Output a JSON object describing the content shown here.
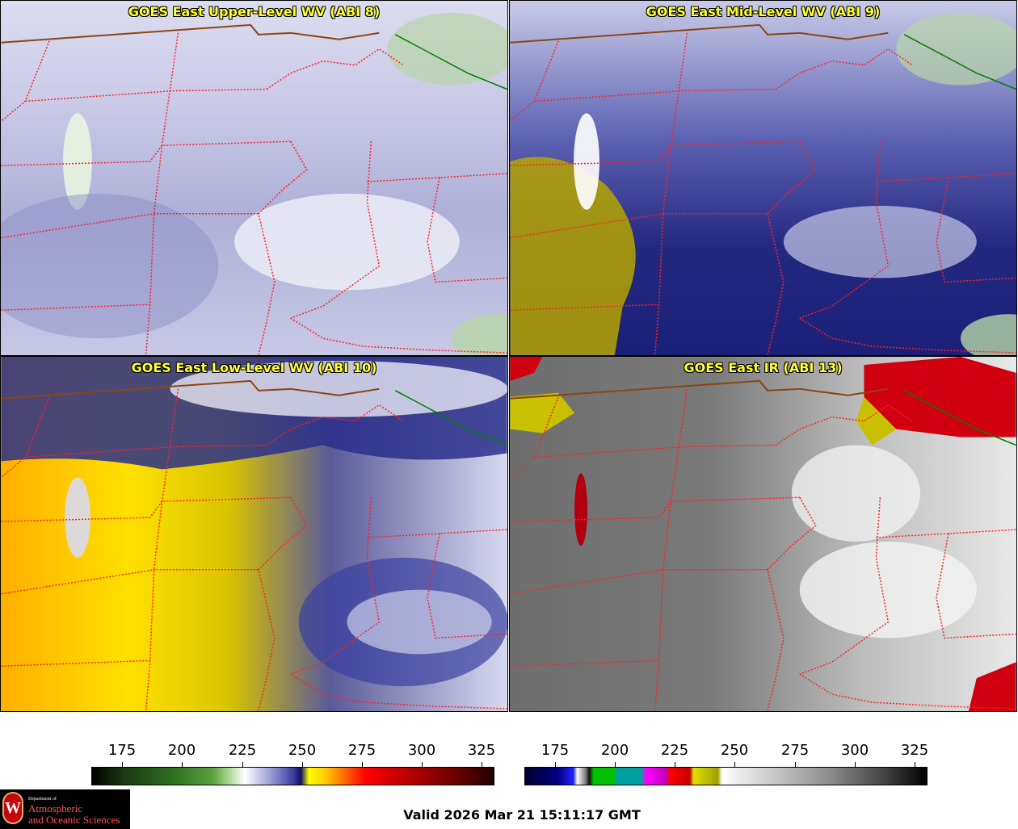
{
  "panels": [
    {
      "title": "GOES East Upper-Level WV (ABI 8)"
    },
    {
      "title": "GOES East Mid-Level WV (ABI 9)"
    },
    {
      "title": "GOES East Low-Level WV (ABI 10)"
    },
    {
      "title": "GOES East IR (ABI 13)"
    }
  ],
  "colorbar_wv": {
    "ticks": [
      "175",
      "200",
      "225",
      "250",
      "275",
      "300",
      "325"
    ]
  },
  "colorbar_ir": {
    "ticks": [
      "175",
      "200",
      "225",
      "250",
      "275",
      "300",
      "325"
    ]
  },
  "logo": {
    "dept": "Department of",
    "line1": "Atmospheric",
    "line2": "and Oceanic Sciences",
    "seal": "W"
  },
  "valid_time": "Valid 2026 Mar 21 15:11:17 GMT",
  "colors": {
    "title_text": "#ffff33",
    "state_borders": "#ff2020",
    "canada_border": "#8b4513",
    "great_lakes": "#00a000"
  }
}
